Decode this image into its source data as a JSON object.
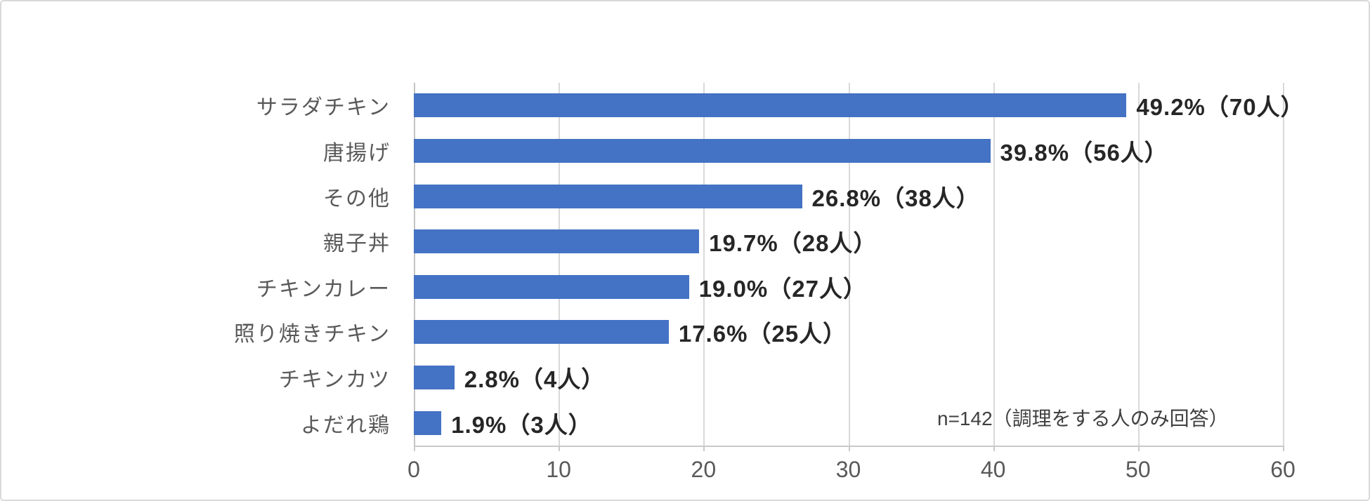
{
  "chart_data": {
    "type": "bar",
    "orientation": "horizontal",
    "title": "",
    "xlabel": "",
    "ylabel": "",
    "categories": [
      "サラダチキン",
      "唐揚げ",
      "その他",
      "親子丼",
      "チキンカレー",
      "照り焼きチキン",
      "チキンカツ",
      "よだれ鶏"
    ],
    "values": [
      49.2,
      39.8,
      26.8,
      19.7,
      19.0,
      17.6,
      2.8,
      1.9
    ],
    "counts": [
      70,
      56,
      38,
      28,
      27,
      25,
      4,
      3
    ],
    "data_labels": [
      "49.2%（70人）",
      "39.8%（56人）",
      "26.8%（38人）",
      "19.7%（28人）",
      "19.0%（27人）",
      "17.6%（25人）",
      "2.8%（4人）",
      "1.9%（3人）"
    ],
    "xlim": [
      0,
      60
    ],
    "x_ticks": [
      "0",
      "10",
      "20",
      "30",
      "40",
      "50",
      "60"
    ],
    "grid": true,
    "legend": false,
    "annotation": "n=142（調理をする人のみ回答）",
    "colors": {
      "bar": "#4472C4",
      "gridline": "#D9D9D9",
      "axis_line": "#C9C9C9",
      "category_label": "#595959",
      "data_label": "#262626",
      "tick_label": "#595959",
      "annotation": "#404040",
      "frame_border": "#D9D9D9"
    }
  }
}
